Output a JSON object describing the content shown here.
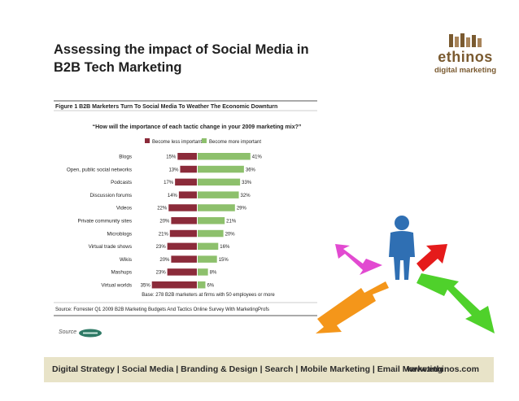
{
  "slide": {
    "title_line1": "Assessing the impact of Social Media in",
    "title_line2": "B2B Tech Marketing"
  },
  "logo": {
    "name": "ethinos",
    "tagline": "digital marketing"
  },
  "chart_data": {
    "type": "bar",
    "title": "Figure 1 B2B Marketers Turn To Social Media To Weather The Economic Downturn",
    "subtitle": "“How will the importance of each tactic change in your 2009 marketing mix?”",
    "categories": [
      "Blogs",
      "Open, public social networks",
      "Podcasts",
      "Discussion forums",
      "Videos",
      "Private community sites",
      "Microblogs",
      "Virtual trade shows",
      "Wikis",
      "Mashups",
      "Virtual worlds"
    ],
    "series": [
      {
        "name": "Become less important",
        "color": "#8b2b3a",
        "values": [
          15,
          13,
          17,
          14,
          22,
          20,
          21,
          23,
          20,
          23,
          35
        ]
      },
      {
        "name": "Become more important",
        "color": "#8dc06c",
        "values": [
          41,
          36,
          33,
          32,
          29,
          21,
          20,
          16,
          15,
          8,
          6
        ]
      }
    ],
    "value_suffix": "%",
    "base_note": "Base: 278 B2B marketers at firms with 50 employees or more",
    "source_note": "Source: Forrester Q1 2009 B2B Marketing Budgets And Tactics Online Survey With MarketingProfs"
  },
  "source": {
    "label": "Source"
  },
  "footer": {
    "links": "Digital Strategy | Social Media | Branding & Design | Search | Mobile Marketing | Email Marketing",
    "url": "www.ethinos.com"
  },
  "icons": {
    "logo": "ethinos-logo-blocks-icon",
    "source_logo": "forrester-logo-icon",
    "illustration": "person-with-arrows-icon"
  }
}
